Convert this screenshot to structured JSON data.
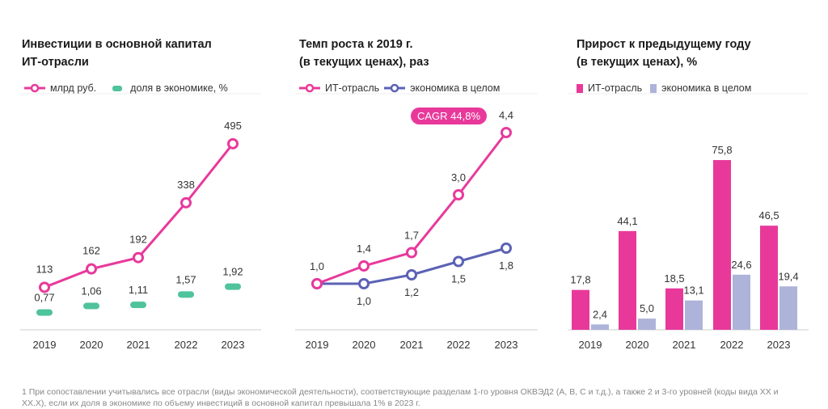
{
  "colors": {
    "it": "#e8399b",
    "share": "#4fc39b",
    "economy": "#5b62b5",
    "economy_bar": "#aeb3d9",
    "axis": "#ccc"
  },
  "chart_data": [
    {
      "type": "line",
      "title": "Инвестиции в основной капитал\nИТ-отрасли",
      "categories": [
        "2019",
        "2020",
        "2021",
        "2022",
        "2023"
      ],
      "series": [
        {
          "name": "млрд руб.",
          "values": [
            113,
            162,
            192,
            338,
            495
          ],
          "labels": [
            "113",
            "162",
            "192",
            "338",
            "495"
          ]
        },
        {
          "name": "доля в экономике, %",
          "values": [
            0.77,
            1.06,
            1.11,
            1.57,
            1.92
          ],
          "labels": [
            "0,77",
            "1,06",
            "1,11",
            "1,57",
            "1,92"
          ],
          "marker": "bar"
        }
      ]
    },
    {
      "type": "line",
      "title": "Темп роста к 2019 г.\n(в текущих ценах), раз",
      "categories": [
        "2019",
        "2020",
        "2021",
        "2022",
        "2023"
      ],
      "annotation": "CAGR 44,8%",
      "series": [
        {
          "name": "ИТ-отрасль",
          "values": [
            1.0,
            1.4,
            1.7,
            3.0,
            4.4
          ],
          "labels": [
            "1,0",
            "1,4",
            "1,7",
            "3,0",
            "4,4"
          ]
        },
        {
          "name": "экономика в целом",
          "values": [
            1.0,
            1.0,
            1.2,
            1.5,
            1.8
          ],
          "labels": [
            "1,0",
            "1,0",
            "1,2",
            "1,5",
            "1,8"
          ]
        }
      ]
    },
    {
      "type": "bar",
      "title": "Прирост к предыдущему году\n(в текущих ценах), %",
      "categories": [
        "2019",
        "2020",
        "2021",
        "2022",
        "2023"
      ],
      "series": [
        {
          "name": "ИТ-отрасль",
          "values": [
            17.8,
            44.1,
            18.5,
            75.8,
            46.5
          ],
          "labels": [
            "17,8",
            "44,1",
            "18,5",
            "75,8",
            "46,5"
          ]
        },
        {
          "name": "экономика в целом",
          "values": [
            2.4,
            5.0,
            13.1,
            24.6,
            19.4
          ],
          "labels": [
            "2,4",
            "5,0",
            "13,1",
            "24,6",
            "19,4"
          ]
        }
      ]
    }
  ],
  "footnote": "1 При сопоставлении учитывались все отрасли (виды экономической деятельности), соответствующие разделам 1-го уровня ОКВЭД2 (A, B, C и т.д.), а также 2 и 3-го уровней (коды вида XX и XX.X), если их доля в экономике по объему инвестиций в основной капитал превышала 1% в 2023 г."
}
